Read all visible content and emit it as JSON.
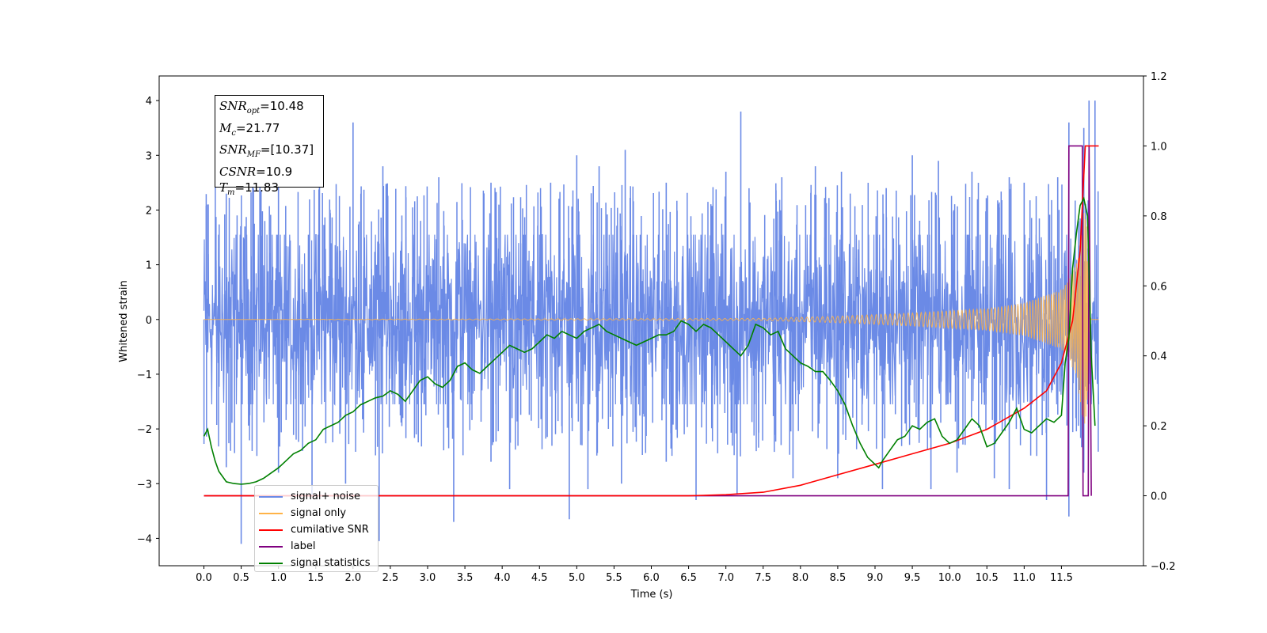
{
  "chart_data": {
    "type": "line",
    "xlabel": "Time (s)",
    "ylabel": "Whitened strain",
    "xlim": [
      -0.6,
      12.6
    ],
    "ylim": [
      -4.5,
      4.45
    ],
    "y2lim": [
      -0.2,
      1.2
    ],
    "xticks": [
      "0.0",
      "0.5",
      "1.0",
      "1.5",
      "2.0",
      "2.5",
      "3.0",
      "3.5",
      "4.0",
      "4.5",
      "5.0",
      "5.5",
      "6.0",
      "6.5",
      "7.0",
      "7.5",
      "8.0",
      "8.5",
      "9.0",
      "9.5",
      "10.0",
      "10.5",
      "11.0",
      "11.5"
    ],
    "yticks": [
      "4",
      "3",
      "2",
      "1",
      "0",
      "−1",
      "−2",
      "−3",
      "−4"
    ],
    "y2ticks": [
      "1.2",
      "1.0",
      "0.8",
      "0.6",
      "0.4",
      "0.2",
      "0.0",
      "−0.2"
    ],
    "stats": {
      "snr_opt_base": "SNR",
      "snr_opt_sub": "opt",
      "snr_opt_value": "=10.48",
      "mc_base": "M",
      "mc_sub": "c",
      "mc_value": "=21.77",
      "snr_mf_base": "SNR",
      "snr_mf_sub": "MF",
      "snr_mf_value": "=[10.37]",
      "csnr_base": "CSNR",
      "csnr_value": "=10.9",
      "tm_base": "T",
      "tm_sub": "m",
      "tm_value": "=11.83"
    },
    "legend": [
      {
        "label": "signal+ noise",
        "color": "#6b8ae6"
      },
      {
        "label": "signal only",
        "color": "#ffb347"
      },
      {
        "label": "cumilative SNR",
        "color": "#ff0000"
      },
      {
        "label": "label",
        "color": "#800080"
      },
      {
        "label": "signal statistics",
        "color": "#008000"
      }
    ],
    "series": [
      {
        "name": "signal+ noise",
        "axis": "left",
        "color": "#6b8ae6",
        "duration": 12.0,
        "core_amplitude": 1.5,
        "peaks_high": [
          [
            0.05,
            2.1
          ],
          [
            0.3,
            2.3
          ],
          [
            0.55,
            1.7
          ],
          [
            1.0,
            2.5
          ],
          [
            1.55,
            2.5
          ],
          [
            2.0,
            3.6
          ],
          [
            2.4,
            2.8
          ],
          [
            3.15,
            2.6
          ],
          [
            3.85,
            2.5
          ],
          [
            4.65,
            2.5
          ],
          [
            5.0,
            3.0
          ],
          [
            5.3,
            2.8
          ],
          [
            5.65,
            3.1
          ],
          [
            6.2,
            2.5
          ],
          [
            7.0,
            2.7
          ],
          [
            7.2,
            3.8
          ],
          [
            7.75,
            2.6
          ],
          [
            8.2,
            2.8
          ],
          [
            8.55,
            2.7
          ],
          [
            9.15,
            2.4
          ],
          [
            9.5,
            3.0
          ],
          [
            9.85,
            2.9
          ],
          [
            10.3,
            2.7
          ],
          [
            10.8,
            2.6
          ],
          [
            11.0,
            2.5
          ],
          [
            11.45,
            2.6
          ],
          [
            11.6,
            3.6
          ],
          [
            11.8,
            3.5
          ],
          [
            11.87,
            4.0
          ],
          [
            11.95,
            4.0
          ]
        ],
        "peaks_low": [
          [
            0.5,
            -4.1
          ],
          [
            0.3,
            -2.7
          ],
          [
            1.0,
            -2.8
          ],
          [
            1.45,
            -3.2
          ],
          [
            1.9,
            -3.0
          ],
          [
            2.35,
            -4.05
          ],
          [
            3.35,
            -3.7
          ],
          [
            3.85,
            -2.6
          ],
          [
            4.1,
            -3.1
          ],
          [
            4.9,
            -3.65
          ],
          [
            5.15,
            -3.1
          ],
          [
            5.6,
            -3.0
          ],
          [
            6.2,
            -2.6
          ],
          [
            6.6,
            -3.3
          ],
          [
            7.15,
            -3.2
          ],
          [
            7.9,
            -2.9
          ],
          [
            8.5,
            -2.9
          ],
          [
            9.1,
            -3.1
          ],
          [
            9.75,
            -3.1
          ],
          [
            10.1,
            -2.8
          ],
          [
            10.6,
            -2.9
          ],
          [
            10.8,
            -3.1
          ],
          [
            11.3,
            -3.3
          ],
          [
            11.6,
            -3.6
          ],
          [
            11.8,
            -2.8
          ]
        ]
      },
      {
        "name": "signal only",
        "axis": "left",
        "color": "#ffb347",
        "envelope": [
          [
            0,
            0.0
          ],
          [
            7.5,
            0.02
          ],
          [
            8.5,
            0.06
          ],
          [
            9.5,
            0.12
          ],
          [
            10.5,
            0.2
          ],
          [
            11.0,
            0.3
          ],
          [
            11.5,
            0.55
          ],
          [
            11.7,
            1.0
          ],
          [
            11.8,
            2.0
          ],
          [
            11.85,
            1.6
          ],
          [
            11.88,
            0.3
          ],
          [
            11.9,
            0.0
          ],
          [
            12.0,
            0.0
          ]
        ]
      },
      {
        "name": "cumilative SNR",
        "axis": "right",
        "x": [
          0,
          6.5,
          7.0,
          7.5,
          8.0,
          8.5,
          9.0,
          9.5,
          10.0,
          10.5,
          11.0,
          11.3,
          11.5,
          11.65,
          11.75,
          11.82,
          11.85,
          12.0
        ],
        "values": [
          0,
          0,
          0.003,
          0.01,
          0.03,
          0.06,
          0.09,
          0.12,
          0.15,
          0.19,
          0.25,
          0.3,
          0.38,
          0.5,
          0.7,
          1.0,
          1.0,
          1.0
        ]
      },
      {
        "name": "label",
        "axis": "right",
        "x": [
          0,
          11.59,
          11.6,
          11.78,
          11.79,
          11.86,
          11.87,
          11.9
        ],
        "values": [
          0,
          0,
          1.0,
          1.0,
          0.0,
          0.0,
          1.0,
          0.0
        ]
      },
      {
        "name": "signal statistics",
        "axis": "right",
        "x": [
          0,
          0.05,
          0.1,
          0.15,
          0.2,
          0.3,
          0.4,
          0.5,
          0.6,
          0.7,
          0.8,
          0.9,
          1.0,
          1.1,
          1.2,
          1.3,
          1.4,
          1.5,
          1.6,
          1.7,
          1.8,
          1.9,
          2.0,
          2.1,
          2.2,
          2.3,
          2.4,
          2.5,
          2.6,
          2.7,
          2.8,
          2.9,
          3.0,
          3.1,
          3.2,
          3.3,
          3.4,
          3.5,
          3.6,
          3.7,
          3.8,
          3.9,
          4.0,
          4.1,
          4.2,
          4.3,
          4.4,
          4.5,
          4.6,
          4.7,
          4.8,
          4.9,
          5.0,
          5.1,
          5.2,
          5.3,
          5.4,
          5.5,
          5.6,
          5.7,
          5.8,
          5.9,
          6.0,
          6.1,
          6.2,
          6.3,
          6.4,
          6.5,
          6.6,
          6.7,
          6.8,
          6.9,
          7.0,
          7.1,
          7.2,
          7.3,
          7.4,
          7.5,
          7.6,
          7.7,
          7.8,
          7.9,
          8.0,
          8.1,
          8.2,
          8.3,
          8.4,
          8.5,
          8.6,
          8.7,
          8.8,
          8.9,
          9.0,
          9.05,
          9.1,
          9.2,
          9.3,
          9.4,
          9.5,
          9.6,
          9.7,
          9.8,
          9.9,
          10.0,
          10.1,
          10.2,
          10.3,
          10.4,
          10.5,
          10.6,
          10.7,
          10.8,
          10.9,
          11.0,
          11.1,
          11.2,
          11.3,
          11.4,
          11.5,
          11.55,
          11.6,
          11.65,
          11.7,
          11.75,
          11.8,
          11.85,
          11.9,
          11.95
        ],
        "values": [
          0.17,
          0.19,
          0.14,
          0.1,
          0.07,
          0.04,
          0.035,
          0.033,
          0.035,
          0.04,
          0.05,
          0.065,
          0.08,
          0.1,
          0.12,
          0.13,
          0.15,
          0.16,
          0.19,
          0.2,
          0.21,
          0.23,
          0.24,
          0.26,
          0.27,
          0.28,
          0.285,
          0.3,
          0.29,
          0.27,
          0.3,
          0.33,
          0.34,
          0.32,
          0.31,
          0.33,
          0.37,
          0.38,
          0.36,
          0.35,
          0.37,
          0.39,
          0.41,
          0.43,
          0.42,
          0.41,
          0.42,
          0.44,
          0.46,
          0.45,
          0.47,
          0.46,
          0.45,
          0.47,
          0.48,
          0.49,
          0.47,
          0.46,
          0.45,
          0.44,
          0.43,
          0.44,
          0.45,
          0.46,
          0.46,
          0.47,
          0.5,
          0.49,
          0.47,
          0.49,
          0.48,
          0.46,
          0.44,
          0.42,
          0.4,
          0.43,
          0.49,
          0.48,
          0.46,
          0.47,
          0.42,
          0.4,
          0.38,
          0.37,
          0.355,
          0.355,
          0.33,
          0.3,
          0.26,
          0.2,
          0.15,
          0.11,
          0.09,
          0.08,
          0.1,
          0.13,
          0.16,
          0.17,
          0.2,
          0.19,
          0.21,
          0.22,
          0.17,
          0.15,
          0.16,
          0.19,
          0.22,
          0.2,
          0.14,
          0.15,
          0.18,
          0.21,
          0.25,
          0.19,
          0.18,
          0.2,
          0.22,
          0.21,
          0.23,
          0.38,
          0.45,
          0.65,
          0.75,
          0.83,
          0.85,
          0.8,
          0.4,
          0.2
        ]
      }
    ]
  }
}
